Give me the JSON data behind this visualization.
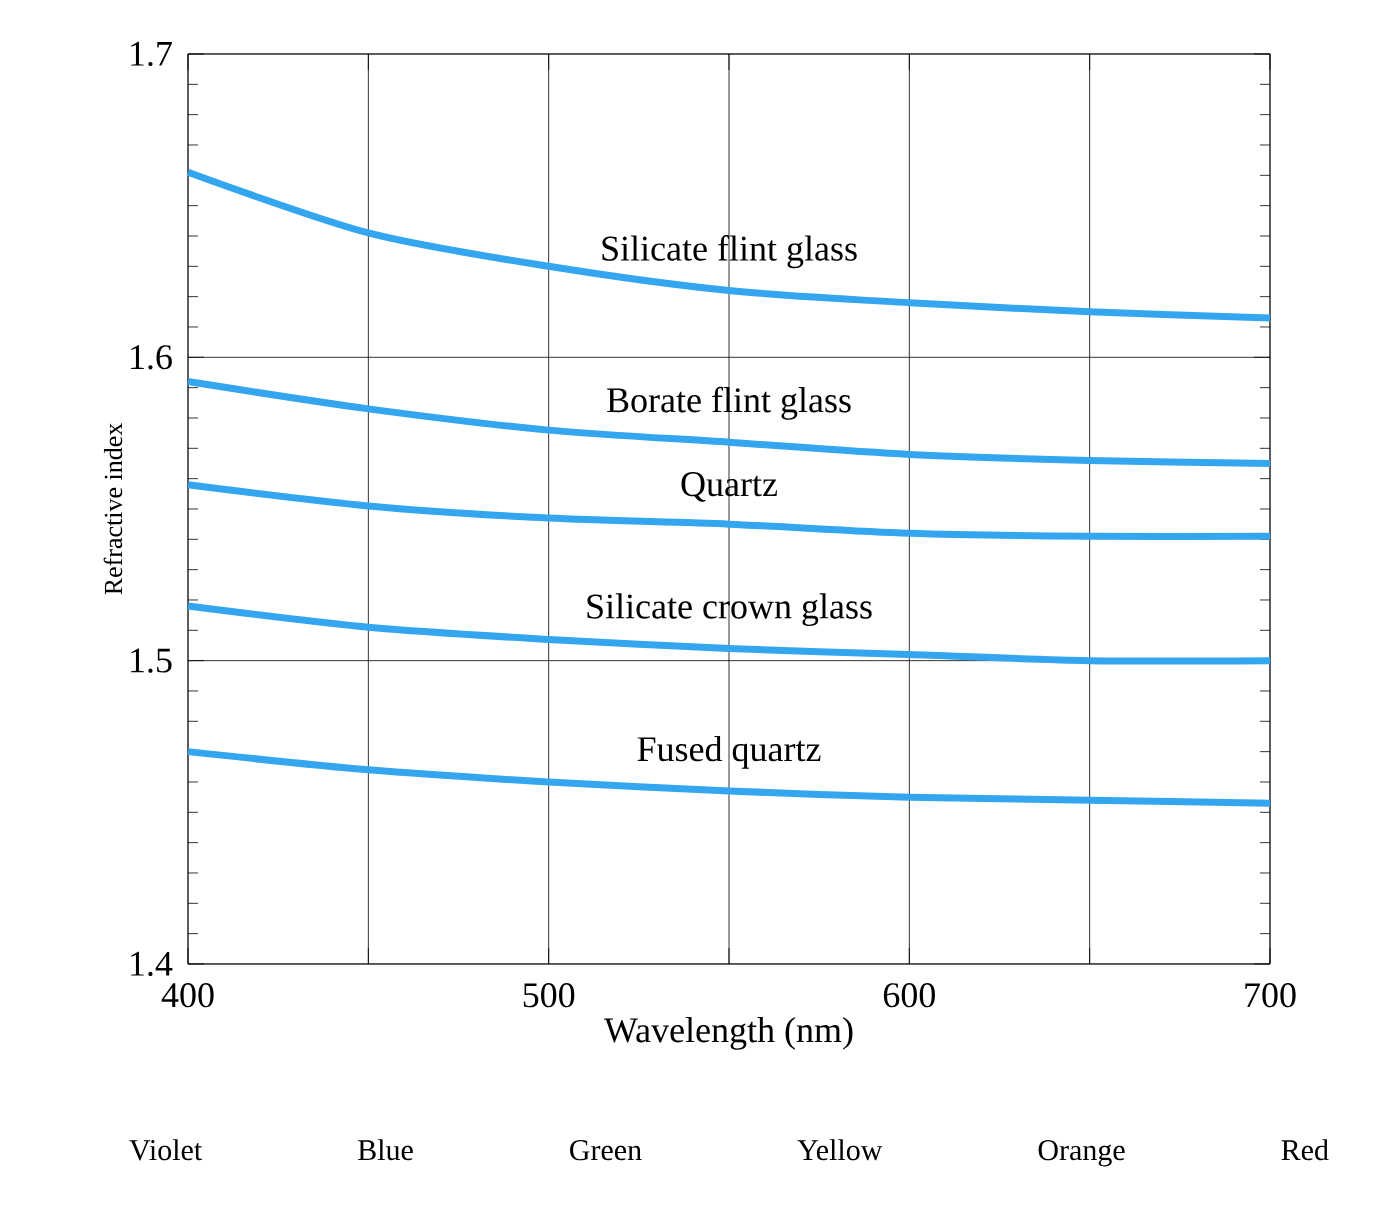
{
  "chart_data": {
    "type": "line",
    "xlabel": "Wavelength (nm)",
    "ylabel": "Refractive index",
    "x": [
      400,
      450,
      500,
      550,
      600,
      650,
      700
    ],
    "series": [
      {
        "name": "Silicate flint glass",
        "color": "#33a6ef",
        "values": [
          1.661,
          1.641,
          1.63,
          1.622,
          1.618,
          1.615,
          1.613
        ]
      },
      {
        "name": "Borate flint glass",
        "color": "#33a6ef",
        "values": [
          1.592,
          1.583,
          1.576,
          1.572,
          1.568,
          1.566,
          1.565
        ]
      },
      {
        "name": "Quartz",
        "color": "#33a6ef",
        "values": [
          1.558,
          1.551,
          1.547,
          1.545,
          1.542,
          1.541,
          1.541
        ]
      },
      {
        "name": "Silicate crown glass",
        "color": "#33a6ef",
        "values": [
          1.518,
          1.511,
          1.507,
          1.504,
          1.502,
          1.5,
          1.5
        ]
      },
      {
        "name": "Fused quartz",
        "color": "#33a6ef",
        "values": [
          1.47,
          1.464,
          1.46,
          1.457,
          1.455,
          1.454,
          1.453
        ]
      }
    ],
    "xlim": [
      400,
      700
    ],
    "ylim": [
      1.4,
      1.7
    ],
    "xticks": [
      400,
      {
        "value": 450,
        "label": null
      },
      500,
      {
        "value": 550,
        "label": null
      },
      600,
      {
        "value": 650,
        "label": null
      },
      700
    ],
    "yticks": [
      1.4,
      1.5,
      1.6,
      1.7
    ],
    "grid": true,
    "marker": "none",
    "line_style": "solid",
    "legend": false,
    "annotations": [
      "Violet",
      "Blue",
      "Green",
      "Yellow",
      "Orange",
      "Red"
    ]
  }
}
